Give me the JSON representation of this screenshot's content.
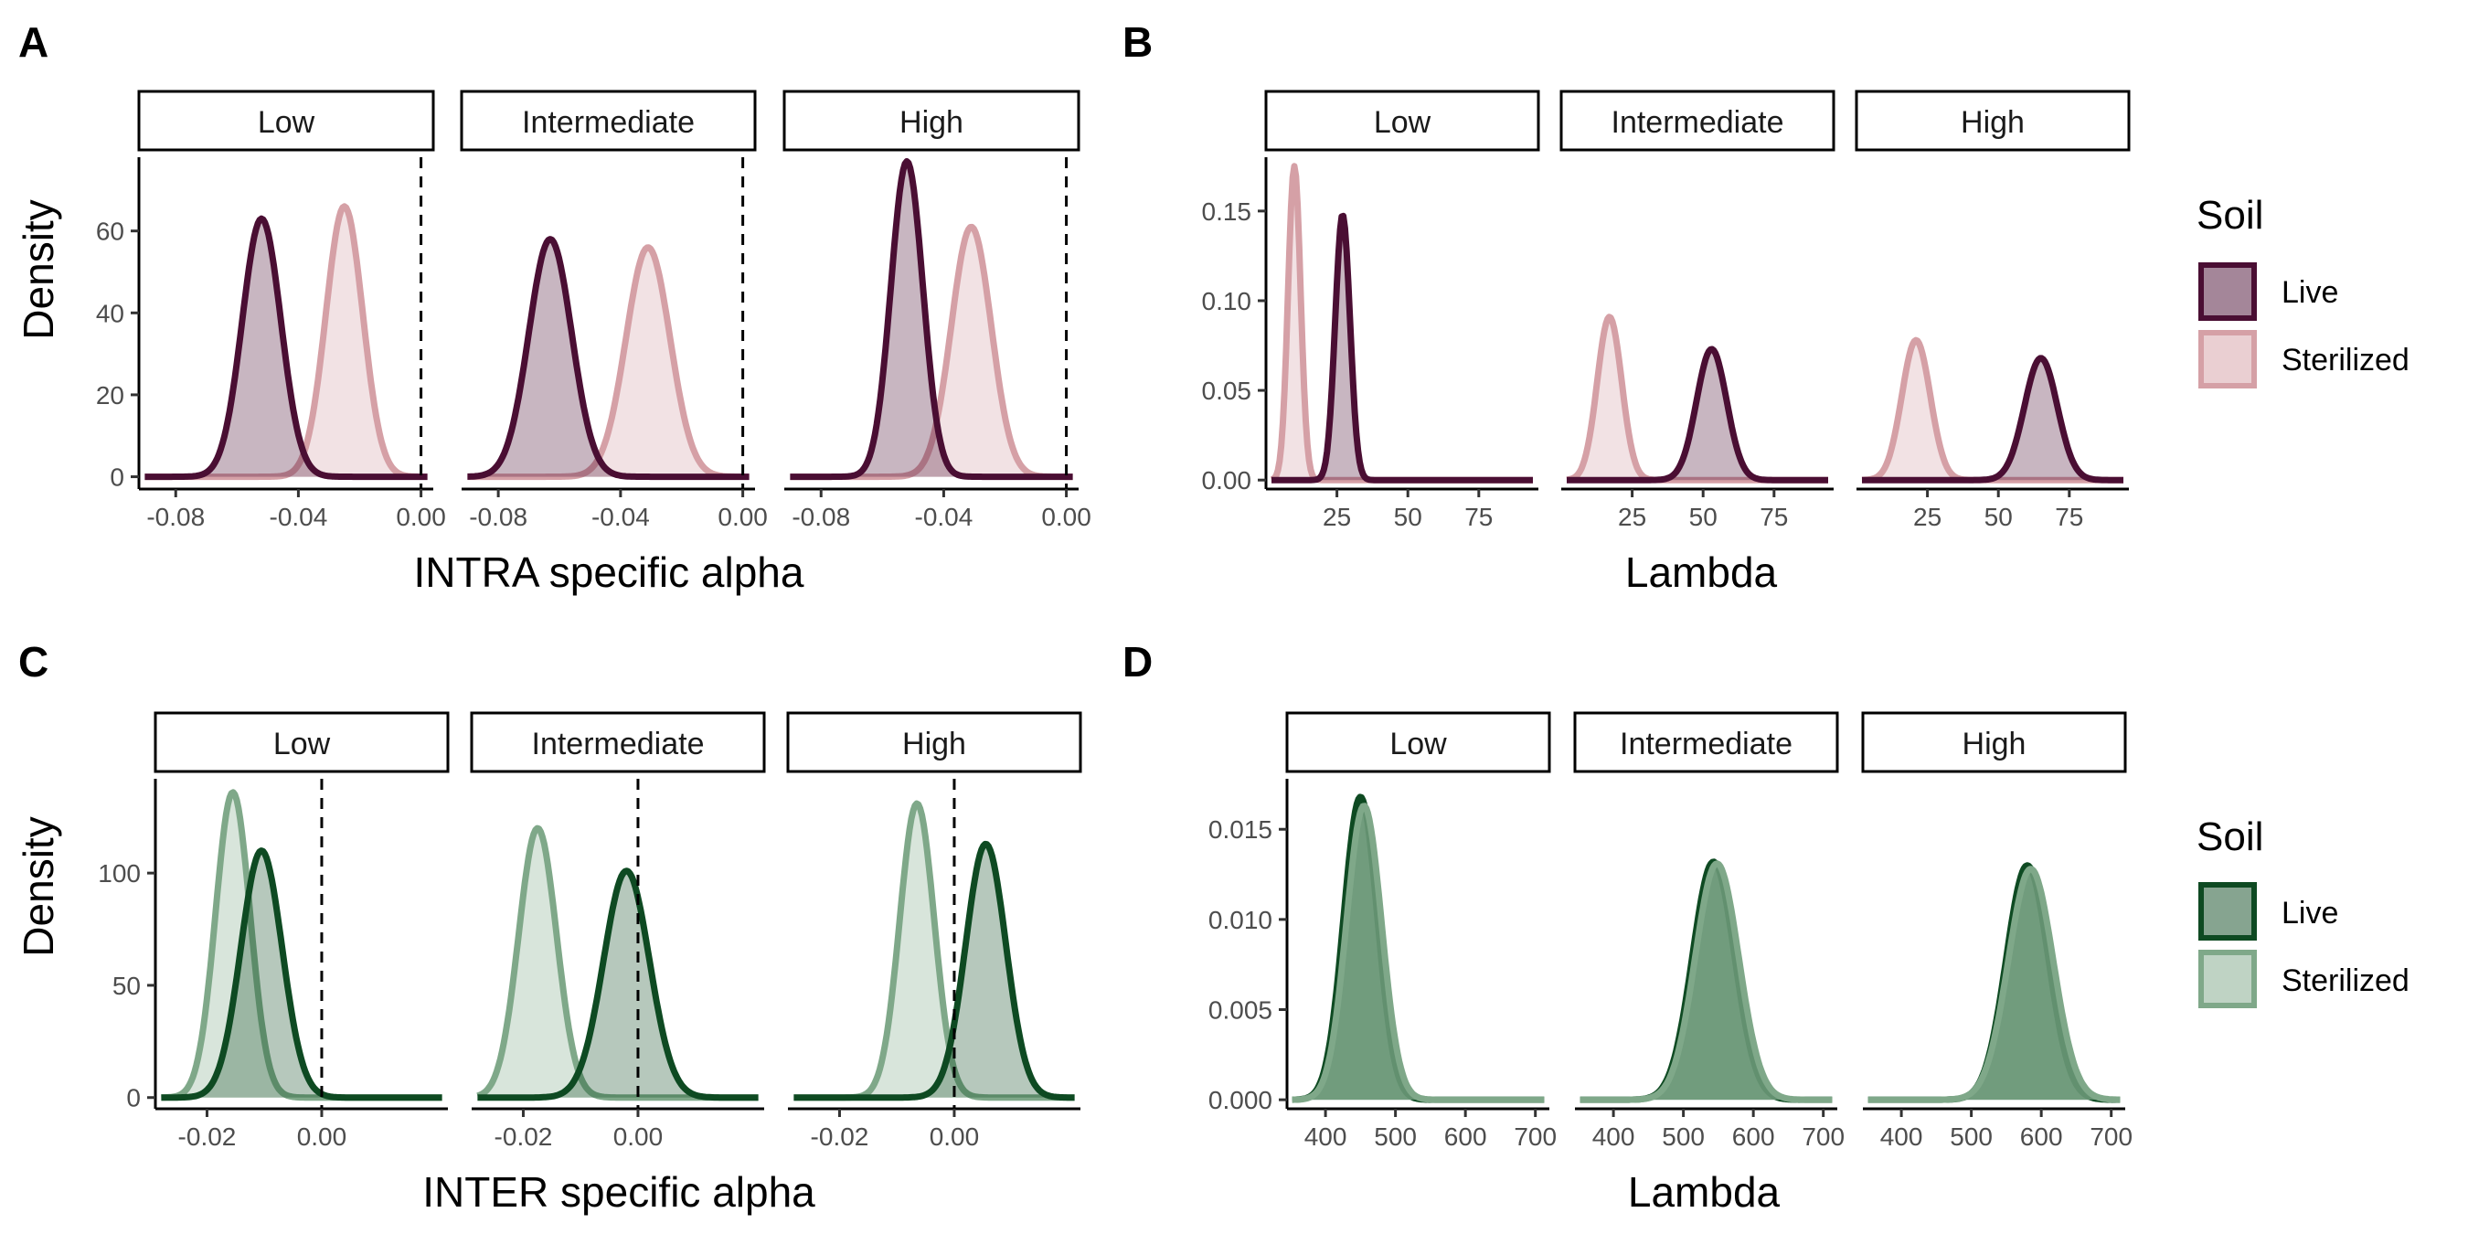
{
  "colors": {
    "live_purple": "#4a0e33",
    "sterilized_purple": "#d5a0a6",
    "live_green": "#0e4a22",
    "sterilized_green": "#7fa889"
  },
  "panels": {
    "A": {
      "tag": "A",
      "xlabel": "INTRA specific alpha",
      "ylabel": "Density"
    },
    "B": {
      "tag": "B",
      "xlabel": "Lambda",
      "ylabel": ""
    },
    "C": {
      "tag": "C",
      "xlabel": "INTER specific alpha",
      "ylabel": "Density"
    },
    "D": {
      "tag": "D",
      "xlabel": "Lambda",
      "ylabel": ""
    }
  },
  "legend_top": {
    "title": "Soil",
    "items": [
      "Live",
      "Sterilized"
    ]
  },
  "legend_bottom": {
    "title": "Soil",
    "items": [
      "Live",
      "Sterilized"
    ]
  },
  "chart_data": [
    {
      "id": "A",
      "type": "area",
      "facets": [
        "Low",
        "Intermediate",
        "High"
      ],
      "xlabel": "INTRA specific alpha",
      "ylabel": "Density",
      "xlim": [
        -0.092,
        0.004
      ],
      "ylim": [
        -3,
        78
      ],
      "xticks": [
        -0.08,
        -0.04,
        0.0
      ],
      "xtick_labels": [
        "-0.08",
        "-0.04",
        "0.00"
      ],
      "yticks": [
        0,
        20,
        40,
        60
      ],
      "ytick_labels": [
        "0",
        "20",
        "40",
        "60"
      ],
      "vline": 0,
      "series": [
        {
          "name": "Live",
          "facet": "Low",
          "mean": -0.052,
          "sd": 0.0063,
          "peak": 63
        },
        {
          "name": "Sterilized",
          "facet": "Low",
          "mean": -0.025,
          "sd": 0.006,
          "peak": 66
        },
        {
          "name": "Live",
          "facet": "Intermediate",
          "mean": -0.063,
          "sd": 0.007,
          "peak": 58
        },
        {
          "name": "Sterilized",
          "facet": "Intermediate",
          "mean": -0.031,
          "sd": 0.0072,
          "peak": 56
        },
        {
          "name": "Live",
          "facet": "High",
          "mean": -0.052,
          "sd": 0.0052,
          "peak": 77
        },
        {
          "name": "Sterilized",
          "facet": "High",
          "mean": -0.031,
          "sd": 0.0065,
          "peak": 61
        }
      ]
    },
    {
      "id": "B",
      "type": "area",
      "facets": [
        "Low",
        "Intermediate",
        "High"
      ],
      "xlabel": "Lambda",
      "ylabel": "",
      "xlim": [
        0,
        96
      ],
      "ylim": [
        -0.005,
        0.18
      ],
      "xticks": [
        25,
        50,
        75
      ],
      "xtick_labels": [
        "25",
        "50",
        "75"
      ],
      "yticks": [
        0,
        0.05,
        0.1,
        0.15
      ],
      "ytick_labels": [
        "0.00",
        "0.05",
        "0.10",
        "0.15"
      ],
      "series": [
        {
          "name": "Live",
          "facet": "Low",
          "mean": 27,
          "sd": 2.6,
          "peak": 0.148
        },
        {
          "name": "Sterilized",
          "facet": "Low",
          "mean": 10,
          "sd": 2.2,
          "peak": 0.175
        },
        {
          "name": "Live",
          "facet": "Intermediate",
          "mean": 53,
          "sd": 5.3,
          "peak": 0.073
        },
        {
          "name": "Sterilized",
          "facet": "Intermediate",
          "mean": 17,
          "sd": 4.3,
          "peak": 0.091
        },
        {
          "name": "Live",
          "facet": "High",
          "mean": 65,
          "sd": 5.8,
          "peak": 0.068
        },
        {
          "name": "Sterilized",
          "facet": "High",
          "mean": 21,
          "sd": 5.0,
          "peak": 0.078
        }
      ]
    },
    {
      "id": "C",
      "type": "area",
      "facets": [
        "Low",
        "Intermediate",
        "High"
      ],
      "xlabel": "INTER specific alpha",
      "ylabel": "Density",
      "xlim": [
        -0.029,
        0.022
      ],
      "ylim": [
        -5,
        142
      ],
      "xticks": [
        -0.02,
        0.0
      ],
      "xtick_labels": [
        "-0.02",
        "0.00"
      ],
      "yticks": [
        0,
        50,
        100
      ],
      "ytick_labels": [
        "0",
        "50",
        "100"
      ],
      "vline": 0,
      "series": [
        {
          "name": "Live",
          "facet": "Low",
          "mean": -0.0105,
          "sd": 0.0036,
          "peak": 110
        },
        {
          "name": "Sterilized",
          "facet": "Low",
          "mean": -0.0155,
          "sd": 0.003,
          "peak": 136
        },
        {
          "name": "Live",
          "facet": "Intermediate",
          "mean": -0.002,
          "sd": 0.004,
          "peak": 101
        },
        {
          "name": "Sterilized",
          "facet": "Intermediate",
          "mean": -0.0175,
          "sd": 0.0033,
          "peak": 120
        },
        {
          "name": "Live",
          "facet": "High",
          "mean": 0.0055,
          "sd": 0.0035,
          "peak": 113
        },
        {
          "name": "Sterilized",
          "facet": "High",
          "mean": -0.0065,
          "sd": 0.003,
          "peak": 131
        }
      ]
    },
    {
      "id": "D",
      "type": "area",
      "facets": [
        "Low",
        "Intermediate",
        "High"
      ],
      "xlabel": "Lambda",
      "ylabel": "",
      "xlim": [
        345,
        720
      ],
      "ylim": [
        -0.0005,
        0.0178
      ],
      "xticks": [
        400,
        500,
        600,
        700
      ],
      "xtick_labels": [
        "400",
        "500",
        "600",
        "700"
      ],
      "yticks": [
        0,
        0.005,
        0.01,
        0.015
      ],
      "ytick_labels": [
        "0.000",
        "0.005",
        "0.010",
        "0.015"
      ],
      "series": [
        {
          "name": "Live",
          "facet": "Low",
          "mean": 450,
          "sd": 24,
          "peak": 0.0168
        },
        {
          "name": "Sterilized",
          "facet": "Low",
          "mean": 455,
          "sd": 25,
          "peak": 0.0163
        },
        {
          "name": "Live",
          "facet": "Intermediate",
          "mean": 543,
          "sd": 30,
          "peak": 0.0132
        },
        {
          "name": "Sterilized",
          "facet": "Intermediate",
          "mean": 548,
          "sd": 31,
          "peak": 0.0131
        },
        {
          "name": "Live",
          "facet": "High",
          "mean": 580,
          "sd": 30,
          "peak": 0.013
        },
        {
          "name": "Sterilized",
          "facet": "High",
          "mean": 585,
          "sd": 32,
          "peak": 0.0128
        }
      ]
    }
  ]
}
